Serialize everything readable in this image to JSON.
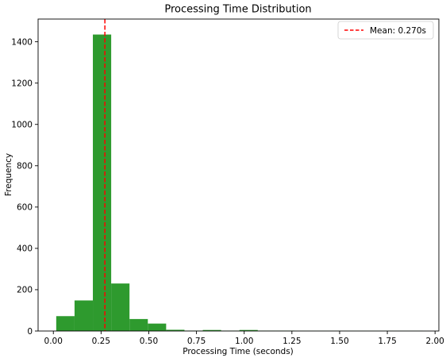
{
  "chart_data": {
    "type": "bar",
    "title": "Processing Time Distribution",
    "xlabel": "Processing Time (seconds)",
    "ylabel": "Frequency",
    "xlim": [
      -0.08,
      2.02
    ],
    "ylim": [
      0,
      1510
    ],
    "xticks": [
      0.0,
      0.25,
      0.5,
      0.75,
      1.0,
      1.25,
      1.5,
      1.75,
      2.0
    ],
    "xtick_labels": [
      "0.00",
      "0.25",
      "0.50",
      "0.75",
      "1.00",
      "1.25",
      "1.50",
      "1.75",
      "2.00"
    ],
    "yticks": [
      0,
      200,
      400,
      600,
      800,
      1000,
      1200,
      1400
    ],
    "ytick_labels": [
      "0",
      "200",
      "400",
      "600",
      "800",
      "1000",
      "1200",
      "1400"
    ],
    "bin_start": 0.015,
    "bin_width": 0.096,
    "counts": [
      72,
      148,
      1435,
      230,
      58,
      36,
      6,
      2,
      5,
      2,
      5,
      2,
      2,
      1,
      1,
      1,
      1,
      1,
      1,
      1
    ],
    "bar_color": "#2e9a2e",
    "mean": 0.27,
    "mean_color": "#ff0000",
    "legend": {
      "position": "top-right",
      "entries": [
        {
          "label": "Mean: 0.270s",
          "color": "#ff0000",
          "style": "dashed"
        }
      ]
    },
    "grid": false
  }
}
